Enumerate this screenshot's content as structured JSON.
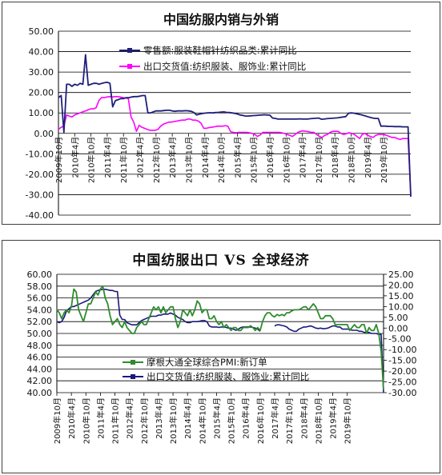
{
  "chart_data": [
    {
      "type": "line",
      "title": "中国纺服内销与外销",
      "ylim": [
        -40,
        50
      ],
      "yticks": [
        "50.00",
        "40.00",
        "30.00",
        "20.00",
        "10.00",
        "0.00",
        "-10.00",
        "-20.00",
        "-30.00",
        "-40.00"
      ],
      "xticks": [
        "2009年10月",
        "2010年4月",
        "2010年10月",
        "2011年4月",
        "2011年10月",
        "2012年4月",
        "2012年10月",
        "2013年4月",
        "2013年10月",
        "2014年4月",
        "2014年10月",
        "2015年4月",
        "2015年10月",
        "2016年4月",
        "2016年10月",
        "2017年4月",
        "2017年10月",
        "2018年4月",
        "2018年10月",
        "2019年4月",
        "2019年10月"
      ],
      "grid": true,
      "legend_position": "top-right",
      "series": [
        {
          "name": "零售额:服装鞋帽针纺织品类:累计同比",
          "color": "#1f1f7a",
          "values": [
            17.5,
            18.5,
            0.5,
            24,
            24,
            23,
            24,
            23.5,
            24.5,
            24,
            38.5,
            23.5,
            24,
            24.5,
            24.5,
            24,
            24.5,
            24.8,
            25,
            24.5,
            13,
            16,
            16.5,
            17,
            17,
            17.5,
            17.5,
            17.8,
            18,
            18,
            18.2,
            18.5,
            18.5,
            10,
            10,
            10.5,
            11,
            11,
            11,
            11.2,
            11.3,
            11.3,
            11,
            10.8,
            11,
            11,
            11,
            11.1,
            11,
            10.8,
            10.2,
            9,
            9.4,
            9.7,
            9.9,
            10,
            10.1,
            10,
            10.2,
            10.3,
            10.4,
            10.5,
            10.3,
            10.2,
            10,
            9.8,
            9.5,
            9,
            8.8,
            8.5,
            8.5,
            8.6,
            8.7,
            8.8,
            8.9,
            9,
            9.1,
            9,
            8.9,
            7.5,
            7.3,
            7,
            7,
            7,
            7,
            7,
            7,
            7,
            7,
            7.1,
            7,
            7,
            7,
            7.2,
            7.3,
            7.4,
            7.5,
            6.9,
            7,
            7.2,
            7.3,
            7.4,
            7.5,
            7.6,
            7.8,
            8,
            8.2,
            9.8,
            10,
            9.9,
            9.6,
            9.3,
            9,
            8.6,
            8.2,
            7.8,
            7.5,
            7.3,
            7.3,
            3.5,
            3.6,
            3.5,
            3.4,
            3.4,
            3.3,
            3.3,
            3.3,
            3.2,
            3.2,
            3.2,
            -31
          ]
        },
        {
          "name": "出口交货值:纺织服装、服饰业:累计同比",
          "color": "#ff00ff",
          "values": [
            2,
            3,
            3.5,
            9,
            8.5,
            8,
            9,
            9.5,
            10,
            10.5,
            11,
            11.5,
            12,
            12,
            12.5,
            16,
            17.5,
            17.5,
            17.8,
            18,
            17.8,
            18,
            18,
            17.8,
            17.5,
            17.3,
            17,
            8,
            5.5,
            1,
            4,
            3,
            2.5,
            2,
            1.5,
            1.5,
            1.5,
            2,
            3.5,
            4.5,
            5,
            5.5,
            5.5,
            5.8,
            6,
            6.3,
            6.5,
            6.5,
            7,
            7,
            6.5,
            6.5,
            6,
            5,
            2.5,
            2.5,
            2.8,
            3,
            3.2,
            3.5,
            3.5,
            3.5,
            3.8,
            3.5,
            0.8,
            0.5,
            0.3,
            0.5,
            0.5,
            0.5,
            0.5,
            0.3,
            0,
            -0.5,
            -1.5,
            -0.8,
            0.5,
            0.5,
            0.5,
            0.5,
            0.5,
            0.5,
            0.5,
            0.3,
            0,
            -0.5,
            -1,
            -1.5,
            -0.5,
            0.5,
            1,
            1.2,
            1,
            0.8,
            0.5,
            0.5,
            -0.5,
            -1.5,
            -2,
            -1,
            -0.5,
            0.5,
            1,
            1,
            1,
            0,
            -0.5,
            -0.2,
            0.3,
            0,
            -0.5,
            -1.5,
            -2.5,
            -0.5,
            0,
            -1,
            -1.5,
            -2,
            -1,
            -0.5,
            -0.5,
            -0.5,
            -1,
            -1.5,
            -2,
            -2,
            -2.5,
            -3,
            -2.5,
            -2.5,
            -2.5,
            -30
          ]
        }
      ]
    },
    {
      "type": "line",
      "title": "中国纺服出口  VS  全球经济",
      "ylim_left": [
        40,
        60
      ],
      "ylim_right": [
        -30,
        25
      ],
      "yticks_left": [
        "60.00",
        "58.00",
        "56.00",
        "54.00",
        "52.00",
        "50.00",
        "48.00",
        "46.00",
        "44.00",
        "42.00",
        "40.00"
      ],
      "yticks_right": [
        "25.00",
        "20.00",
        "15.00",
        "10.00",
        "5.00",
        "0.00",
        "-5.00",
        "-10.00",
        "-15.00",
        "-20.00",
        "-25.00",
        "-30.00"
      ],
      "xticks": [
        "2009年10月",
        "2010年4月",
        "2010年10月",
        "2011年4月",
        "2011年10月",
        "2012年4月",
        "2012年10月",
        "2013年4月",
        "2013年10月",
        "2014年4月",
        "2014年10月",
        "2015年4月",
        "2015年10月",
        "2016年4月",
        "2016年10月",
        "2017年4月",
        "2017年10月",
        "2018年4月",
        "2018年10月",
        "2019年4月",
        "2019年10月"
      ],
      "grid": true,
      "legend_position": "bottom-center",
      "series": [
        {
          "name": "摩根大通全球综合PMI:新订单",
          "color": "#2e8b2e",
          "axis": "left",
          "values": [
            54,
            53.5,
            52.5,
            53.5,
            54,
            53.5,
            54.5,
            57.5,
            57,
            54,
            53,
            52,
            53.5,
            55,
            55,
            56,
            57,
            56.5,
            57.5,
            58,
            56,
            55,
            53,
            51.5,
            52,
            52.5,
            51.5,
            51,
            52,
            51,
            50.5,
            50,
            50,
            51,
            51.5,
            52,
            51.5,
            51.5,
            52.5,
            53.5,
            54.5,
            54,
            54.5,
            53.5,
            54.5,
            53.5,
            54,
            54.5,
            54.5,
            52.5,
            51,
            52,
            54,
            53.5,
            53,
            54,
            53,
            54,
            55.5,
            55,
            53.5,
            54,
            54,
            52.5,
            52.5,
            53,
            52,
            51.5,
            52,
            51,
            51.5,
            51,
            50.5,
            51,
            51,
            50.5,
            50.5,
            51,
            51,
            51,
            51.3,
            51,
            50.5,
            51,
            50.5,
            52,
            53,
            53.5,
            53.5,
            53,
            52.8,
            53.2,
            53,
            53.2,
            53,
            53.5,
            53.5,
            53.8,
            54,
            54,
            54,
            54.2,
            54.5,
            54.5,
            54,
            54.5,
            55,
            54.5,
            53.5,
            52.5,
            52.5,
            53,
            53,
            53,
            52.5,
            51.5,
            51.5,
            51.5,
            51.5,
            51.5,
            51.5,
            50.5,
            51,
            51.5,
            51,
            51,
            51.5,
            51.5,
            50,
            51,
            50.5,
            50.5,
            51.5,
            50,
            47,
            40.5
          ]
        },
        {
          "name": "出口交货值:纺织服装、服饰业:累计同比",
          "color": "#1a1a7a",
          "axis": "right",
          "values": [
            3,
            2.5,
            3,
            5,
            8,
            9,
            10,
            10,
            10.5,
            11,
            11.5,
            12,
            12.5,
            13,
            14,
            15.5,
            17,
            17.5,
            17.8,
            18,
            18,
            17.8,
            17.5,
            17.5,
            17,
            17,
            6,
            4,
            4,
            2.5,
            2,
            1.5,
            1.5,
            1.5,
            2.5,
            3.5,
            4,
            4.5,
            5,
            5.5,
            5.5,
            5.5,
            6,
            6,
            6.5,
            6.5,
            6.5,
            7,
            6.5,
            6,
            5,
            4.5,
            4,
            3,
            2.5,
            2.5,
            3,
            3,
            3,
            3.2,
            3.5,
            3.5,
            3,
            1,
            0.5,
            0.5,
            0.5,
            0.3,
            0.5,
            0.5,
            0.3,
            0,
            0,
            -0.5,
            -1,
            -0.5,
            0.2,
            0.5,
            0.5,
            0.5,
            0.5,
            0.3,
            0,
            -0.5,
            -1.5,
            null,
            null,
            null,
            null,
            null,
            1,
            1.5,
            1.5,
            1.2,
            1,
            0.5,
            -0.5,
            -1,
            -1.5,
            -1.5,
            -0.5,
            0,
            0.5,
            0.5,
            0.8,
            1,
            0.5,
            0,
            -0.2,
            0,
            -0.3,
            -0.2,
            0,
            0.5,
            1,
            1,
            0.5,
            0.5,
            -0.5,
            -0.5,
            -0.5,
            -0.5,
            -1,
            -1,
            -1,
            -1.5,
            -1.5,
            -2,
            -2,
            -2,
            -2.5,
            -2.5,
            -2.5,
            -3,
            -3,
            -30
          ]
        }
      ]
    }
  ]
}
